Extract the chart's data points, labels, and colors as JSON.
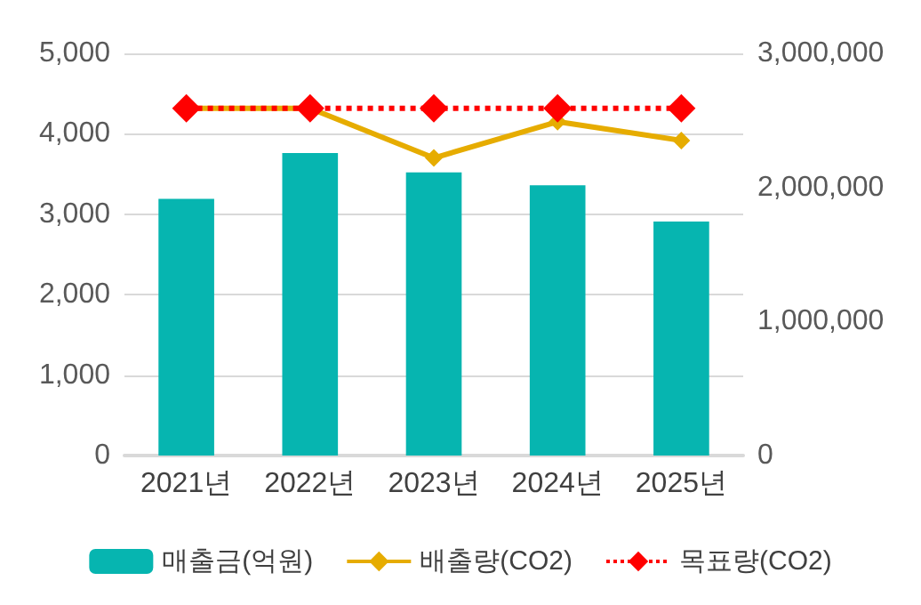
{
  "chart_data": {
    "type": "bar",
    "categories": [
      "2021년",
      "2022년",
      "2023년",
      "2024년",
      "2025년"
    ],
    "series": [
      {
        "name": "매출금(억원)",
        "color": "#06b5b0",
        "values": [
          3190,
          3760,
          3520,
          3360,
          2910
        ]
      },
      {
        "name": "배출량(CO2)",
        "type": "line",
        "axis": "y2",
        "color": "#e6ac00",
        "marker": "diamond",
        "line_style": "solid",
        "values": [
          2590000,
          2590000,
          2220000,
          2490000,
          2350000
        ]
      },
      {
        "name": "목표량(CO2)",
        "type": "line",
        "axis": "y2",
        "color": "#ff0000",
        "marker": "diamond",
        "line_style": "dotted",
        "values": [
          2590000,
          2590000,
          2590000,
          2590000,
          2590000
        ]
      }
    ],
    "ylim": [
      0,
      5000
    ],
    "yticks": [
      0,
      {
        "value": 1000,
        "label": "1,000"
      },
      {
        "value": 2000,
        "label": "2,000"
      },
      {
        "value": 3000,
        "label": "3,000"
      },
      {
        "value": 4000,
        "label": "4,000"
      },
      {
        "value": 5000,
        "label": "5,000"
      }
    ],
    "y2lim": [
      0,
      3000000
    ],
    "y2ticks": [
      0,
      {
        "value": 1000000,
        "label": "1,000,000"
      },
      {
        "value": 2000000,
        "label": "2,000,000"
      },
      {
        "value": 3000000,
        "label": "3,000,000"
      }
    ],
    "grid": "y",
    "legend": "bottom"
  }
}
